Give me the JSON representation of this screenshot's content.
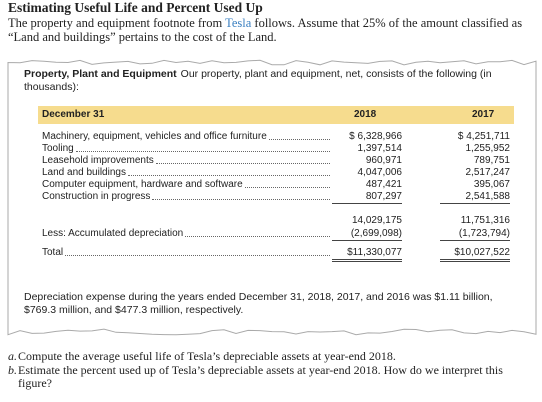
{
  "title": "Estimating Useful Life and Percent Used Up",
  "intro": {
    "before": "The property and equipment footnote from ",
    "link": "Tesla",
    "after": " follows. Assume that 25% of the amount classified as “Land and buildings” pertains to the cost of the Land."
  },
  "excerpt": {
    "heading": "Property, Plant and Equipment",
    "lead": "Our property, plant and equipment, net, consists of the following (in thousands):",
    "table": {
      "header": [
        "December 31",
        "2018",
        "2017"
      ],
      "rows": [
        {
          "label": "Machinery, equipment, vehicles and office furniture",
          "values": [
            "$ 6,328,966",
            "$ 4,251,711"
          ]
        },
        {
          "label": "Tooling",
          "values": [
            "1,397,514",
            "1,255,952"
          ]
        },
        {
          "label": "Leasehold improvements",
          "values": [
            "960,971",
            "789,751"
          ]
        },
        {
          "label": "Land and buildings",
          "values": [
            "4,047,006",
            "2,517,247"
          ]
        },
        {
          "label": "Computer equipment, hardware and software",
          "values": [
            "487,421",
            "395,067"
          ]
        },
        {
          "label": "Construction in progress",
          "values": [
            "807,297",
            "2,541,588"
          ]
        }
      ],
      "subtotal": [
        "14,029,175",
        "11,751,316"
      ],
      "depreciation": {
        "label": "Less: Accumulated depreciation",
        "values": [
          "(2,699,098)",
          "(1,723,794)"
        ]
      },
      "total": {
        "label": "Total",
        "values": [
          "$11,330,077",
          "$10,027,522"
        ]
      }
    },
    "note": "Depreciation expense during the years ended December 31, 2018, 2017, and 2016 was $1.11 billion, $769.3 million, and $477.3 million, respectively."
  },
  "questions": [
    {
      "marker": "a.",
      "text": "Compute the average useful life of Tesla’s depreciable assets at year-end 2018."
    },
    {
      "marker": "b.",
      "text": "Estimate the percent used up of Tesla’s depreciable assets at year-end 2018. How do we interpret this figure?"
    }
  ]
}
